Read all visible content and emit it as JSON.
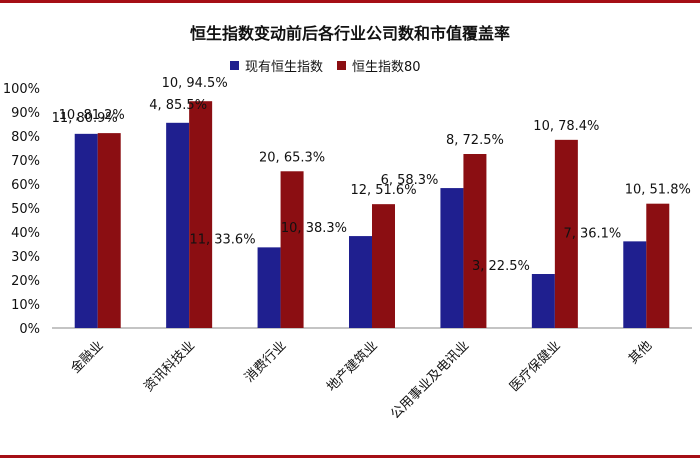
{
  "chart_data": {
    "type": "bar",
    "title": "恒生指数变动前后各行业公司数和市值覆盖率",
    "categories": [
      "金融业",
      "资讯科技业",
      "消费行业",
      "地产建筑业",
      "公用事业及电讯业",
      "医疗保健业",
      "其他"
    ],
    "series": [
      {
        "name": "现有恒生指数",
        "color": "#1f1f8f",
        "values": [
          80.9,
          85.5,
          33.6,
          38.3,
          58.3,
          22.5,
          36.1
        ],
        "labels": [
          "11, 80.9%",
          "4, 85.5%",
          "11, 33.6%",
          "10, 38.3%",
          "6, 58.3%",
          "3, 22.5%",
          "7, 36.1%"
        ]
      },
      {
        "name": "恒生指数80",
        "color": "#8b0e12",
        "values": [
          81.2,
          94.5,
          65.3,
          51.6,
          72.5,
          78.4,
          51.8
        ],
        "labels": [
          "10, 81.2%",
          "10, 94.5%",
          "20, 65.3%",
          "12, 51.6%",
          "8, 72.5%",
          "10, 78.4%",
          "10, 51.8%"
        ]
      }
    ],
    "ylim": [
      0,
      100
    ],
    "yticks": [
      "0%",
      "10%",
      "20%",
      "30%",
      "40%",
      "50%",
      "60%",
      "70%",
      "80%",
      "90%",
      "100%"
    ],
    "grid": false,
    "legend": "top-center"
  }
}
